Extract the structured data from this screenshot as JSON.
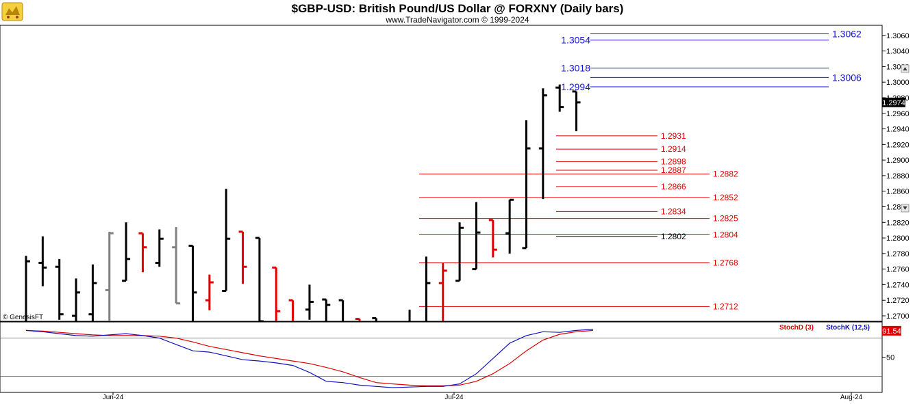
{
  "header": {
    "title": "$GBP-USD:  British Pound/US Dollar @ FORXNY  (Daily bars)",
    "subtitle": "www.TradeNavigator.com © 1999-2024",
    "logo_icon": "bull-bear-logo-icon"
  },
  "credit": "© GenesisFT",
  "colors": {
    "up_bar": "#000000",
    "down_bar": "#e00000",
    "neutral_bar": "#808080",
    "red_level": "#e00000",
    "blue_level": "#1010e0",
    "stochD": "#e00000",
    "stochK": "#1010c0",
    "price_tag_bg": "#000000",
    "stoch_tag_bg": "#e00000"
  },
  "chart_data": [
    {
      "type": "ohlc",
      "title": "$GBP-USD:  British Pound/US Dollar @ FORXNY  (Daily bars)",
      "y_ticks": [
        "1.3060",
        "1.3040",
        "1.3020",
        "1.3000",
        "1.2980",
        "1.2960",
        "1.2940",
        "1.2920",
        "1.2900",
        "1.2880",
        "1.2860",
        "1.2840",
        "1.2820",
        "1.2800",
        "1.2780",
        "1.2760",
        "1.2740",
        "1.2720",
        "1.2700"
      ],
      "ylim": [
        1.2693,
        1.3073
      ],
      "x_labels": [
        "Jun-24",
        "Jul-24",
        "Aug-24"
      ],
      "last_price": "1.2974",
      "last_price_value": 1.2974,
      "bars": [
        {
          "o": 1.2692,
          "h": 1.2777,
          "l": 1.264,
          "c": 1.277,
          "color": "up"
        },
        {
          "o": 1.2768,
          "h": 1.2802,
          "l": 1.2738,
          "c": 1.2762,
          "color": "up"
        },
        {
          "o": 1.2763,
          "h": 1.2773,
          "l": 1.2695,
          "c": 1.2702,
          "color": "up"
        },
        {
          "o": 1.27,
          "h": 1.2748,
          "l": 1.268,
          "c": 1.273,
          "color": "up"
        },
        {
          "o": 1.2702,
          "h": 1.2766,
          "l": 1.265,
          "c": 1.2742,
          "color": "up"
        },
        {
          "o": 1.2733,
          "h": 1.2808,
          "l": 1.26,
          "c": 1.2806,
          "color": "neutral"
        },
        {
          "o": 1.2745,
          "h": 1.282,
          "l": 1.2745,
          "c": 1.2773,
          "color": "up"
        },
        {
          "o": 1.2806,
          "h": 1.2806,
          "l": 1.2756,
          "c": 1.2788,
          "color": "down"
        },
        {
          "o": 1.2768,
          "h": 1.2811,
          "l": 1.2763,
          "c": 1.2799,
          "color": "up"
        },
        {
          "o": 1.2788,
          "h": 1.2814,
          "l": 1.2716,
          "c": 1.2716,
          "color": "neutral"
        },
        {
          "o": 1.279,
          "h": 1.279,
          "l": 1.2665,
          "c": 1.273,
          "color": "up"
        },
        {
          "o": 1.272,
          "h": 1.2753,
          "l": 1.2707,
          "c": 1.2743,
          "color": "down"
        },
        {
          "o": 1.2732,
          "h": 1.2863,
          "l": 1.2732,
          "c": 1.2799,
          "color": "up"
        },
        {
          "o": 1.2808,
          "h": 1.2808,
          "l": 1.2741,
          "c": 1.2763,
          "color": "down"
        },
        {
          "o": 1.28,
          "h": 1.28,
          "l": 1.269,
          "c": 1.2693,
          "color": "up"
        },
        {
          "o": 1.2762,
          "h": 1.2762,
          "l": 1.266,
          "c": 1.2706,
          "color": "down"
        },
        {
          "o": 1.272,
          "h": 1.272,
          "l": 1.266,
          "c": 1.2686,
          "color": "down"
        },
        {
          "o": 1.2708,
          "h": 1.274,
          "l": 1.2695,
          "c": 1.2718,
          "color": "up"
        },
        {
          "o": 1.2721,
          "h": 1.2721,
          "l": 1.268,
          "c": 1.2714,
          "color": "up"
        },
        {
          "o": 1.272,
          "h": 1.272,
          "l": 1.265,
          "c": 1.268,
          "color": "up"
        },
        {
          "o": 1.2696,
          "h": 1.2696,
          "l": 1.2672,
          "c": 1.2684,
          "color": "down"
        },
        {
          "o": 1.2697,
          "h": 1.2697,
          "l": 1.267,
          "c": 1.269,
          "color": "up"
        },
        {
          "o": 1.2692,
          "h": 1.2692,
          "l": 1.2665,
          "c": 1.269,
          "color": "up"
        },
        {
          "o": 1.2683,
          "h": 1.2708,
          "l": 1.266,
          "c": 1.268,
          "color": "up"
        },
        {
          "o": 1.269,
          "h": 1.2776,
          "l": 1.265,
          "c": 1.2742,
          "color": "up"
        },
        {
          "o": 1.2742,
          "h": 1.2768,
          "l": 1.269,
          "c": 1.2758,
          "color": "down"
        },
        {
          "o": 1.2745,
          "h": 1.282,
          "l": 1.2745,
          "c": 1.2813,
          "color": "up"
        },
        {
          "o": 1.276,
          "h": 1.2846,
          "l": 1.276,
          "c": 1.2807,
          "color": "up"
        },
        {
          "o": 1.2823,
          "h": 1.2823,
          "l": 1.2775,
          "c": 1.2785,
          "color": "down"
        },
        {
          "o": 1.2806,
          "h": 1.2849,
          "l": 1.278,
          "c": 1.2849,
          "color": "up"
        },
        {
          "o": 1.2787,
          "h": 1.2951,
          "l": 1.2787,
          "c": 1.2915,
          "color": "up"
        },
        {
          "o": 1.2915,
          "h": 1.2992,
          "l": 1.285,
          "c": 1.2983,
          "color": "up"
        },
        {
          "o": 1.2993,
          "h": 1.2997,
          "l": 1.2962,
          "c": 1.2968,
          "color": "up"
        },
        {
          "o": 1.2988,
          "h": 1.2988,
          "l": 1.2937,
          "c": 1.2974,
          "color": "up"
        }
      ],
      "levels": [
        {
          "value": 1.2931,
          "label": "1.2931",
          "color": "red",
          "side": "short"
        },
        {
          "value": 1.2914,
          "label": "1.2914",
          "color": "red",
          "side": "short"
        },
        {
          "value": 1.2898,
          "label": "1.2898",
          "color": "red",
          "side": "short"
        },
        {
          "value": 1.2887,
          "label": "1.2887",
          "color": "red",
          "side": "short"
        },
        {
          "value": 1.2882,
          "label": "1.2882",
          "color": "red",
          "side": "long"
        },
        {
          "value": 1.2866,
          "label": "1.2866",
          "color": "red",
          "side": "short"
        },
        {
          "value": 1.2852,
          "label": "1.2852",
          "color": "red",
          "side": "long"
        },
        {
          "value": 1.2834,
          "label": "1.2834",
          "color": "red",
          "side": "short"
        },
        {
          "value": 1.2825,
          "label": "1.2825",
          "color": "red",
          "side": "long"
        },
        {
          "value": 1.2804,
          "label": "1.2804",
          "color": "red",
          "side": "long"
        },
        {
          "value": 1.2802,
          "label": "1.2802",
          "color": "black",
          "side": "short"
        },
        {
          "value": 1.2768,
          "label": "1.2768",
          "color": "red",
          "side": "long"
        },
        {
          "value": 1.2712,
          "label": "1.2712",
          "color": "red",
          "side": "long"
        },
        {
          "value": 1.3062,
          "label": "1.3062",
          "color": "blue",
          "side": "right"
        },
        {
          "value": 1.3054,
          "label": "1.3054",
          "color": "blue",
          "side": "left"
        },
        {
          "value": 1.3018,
          "label": "1.3018",
          "color": "blue",
          "side": "left"
        },
        {
          "value": 1.3006,
          "label": "1.3006",
          "color": "blue",
          "side": "right"
        },
        {
          "value": 1.2994,
          "label": "1.2994",
          "color": "blue",
          "side": "left"
        }
      ]
    },
    {
      "type": "line",
      "legend": [
        "StochD (3)",
        "StochK (12,5)"
      ],
      "ylim": [
        0,
        100
      ],
      "y_ticks": [
        "50"
      ],
      "last_value": "91.54",
      "last_value_num": 91.54,
      "reference_lines": [
        80,
        20
      ],
      "series": [
        {
          "name": "StochD (3)",
          "color": "red",
          "values": [
            92,
            91,
            89,
            87,
            85,
            84,
            84,
            84,
            83,
            80,
            74,
            67,
            62,
            57,
            52,
            48,
            44,
            40,
            34,
            27,
            18,
            10,
            8,
            6,
            5,
            5,
            6,
            12,
            24,
            40,
            60,
            77,
            86,
            90,
            92
          ]
        },
        {
          "name": "StochK (12,5)",
          "color": "blue",
          "values": [
            92,
            90,
            87,
            84,
            83,
            85,
            87,
            84,
            80,
            70,
            60,
            58,
            52,
            46,
            44,
            41,
            37,
            26,
            12,
            10,
            6,
            4,
            2,
            3,
            4,
            4,
            8,
            24,
            48,
            72,
            84,
            90,
            89,
            92,
            94
          ]
        }
      ]
    }
  ]
}
